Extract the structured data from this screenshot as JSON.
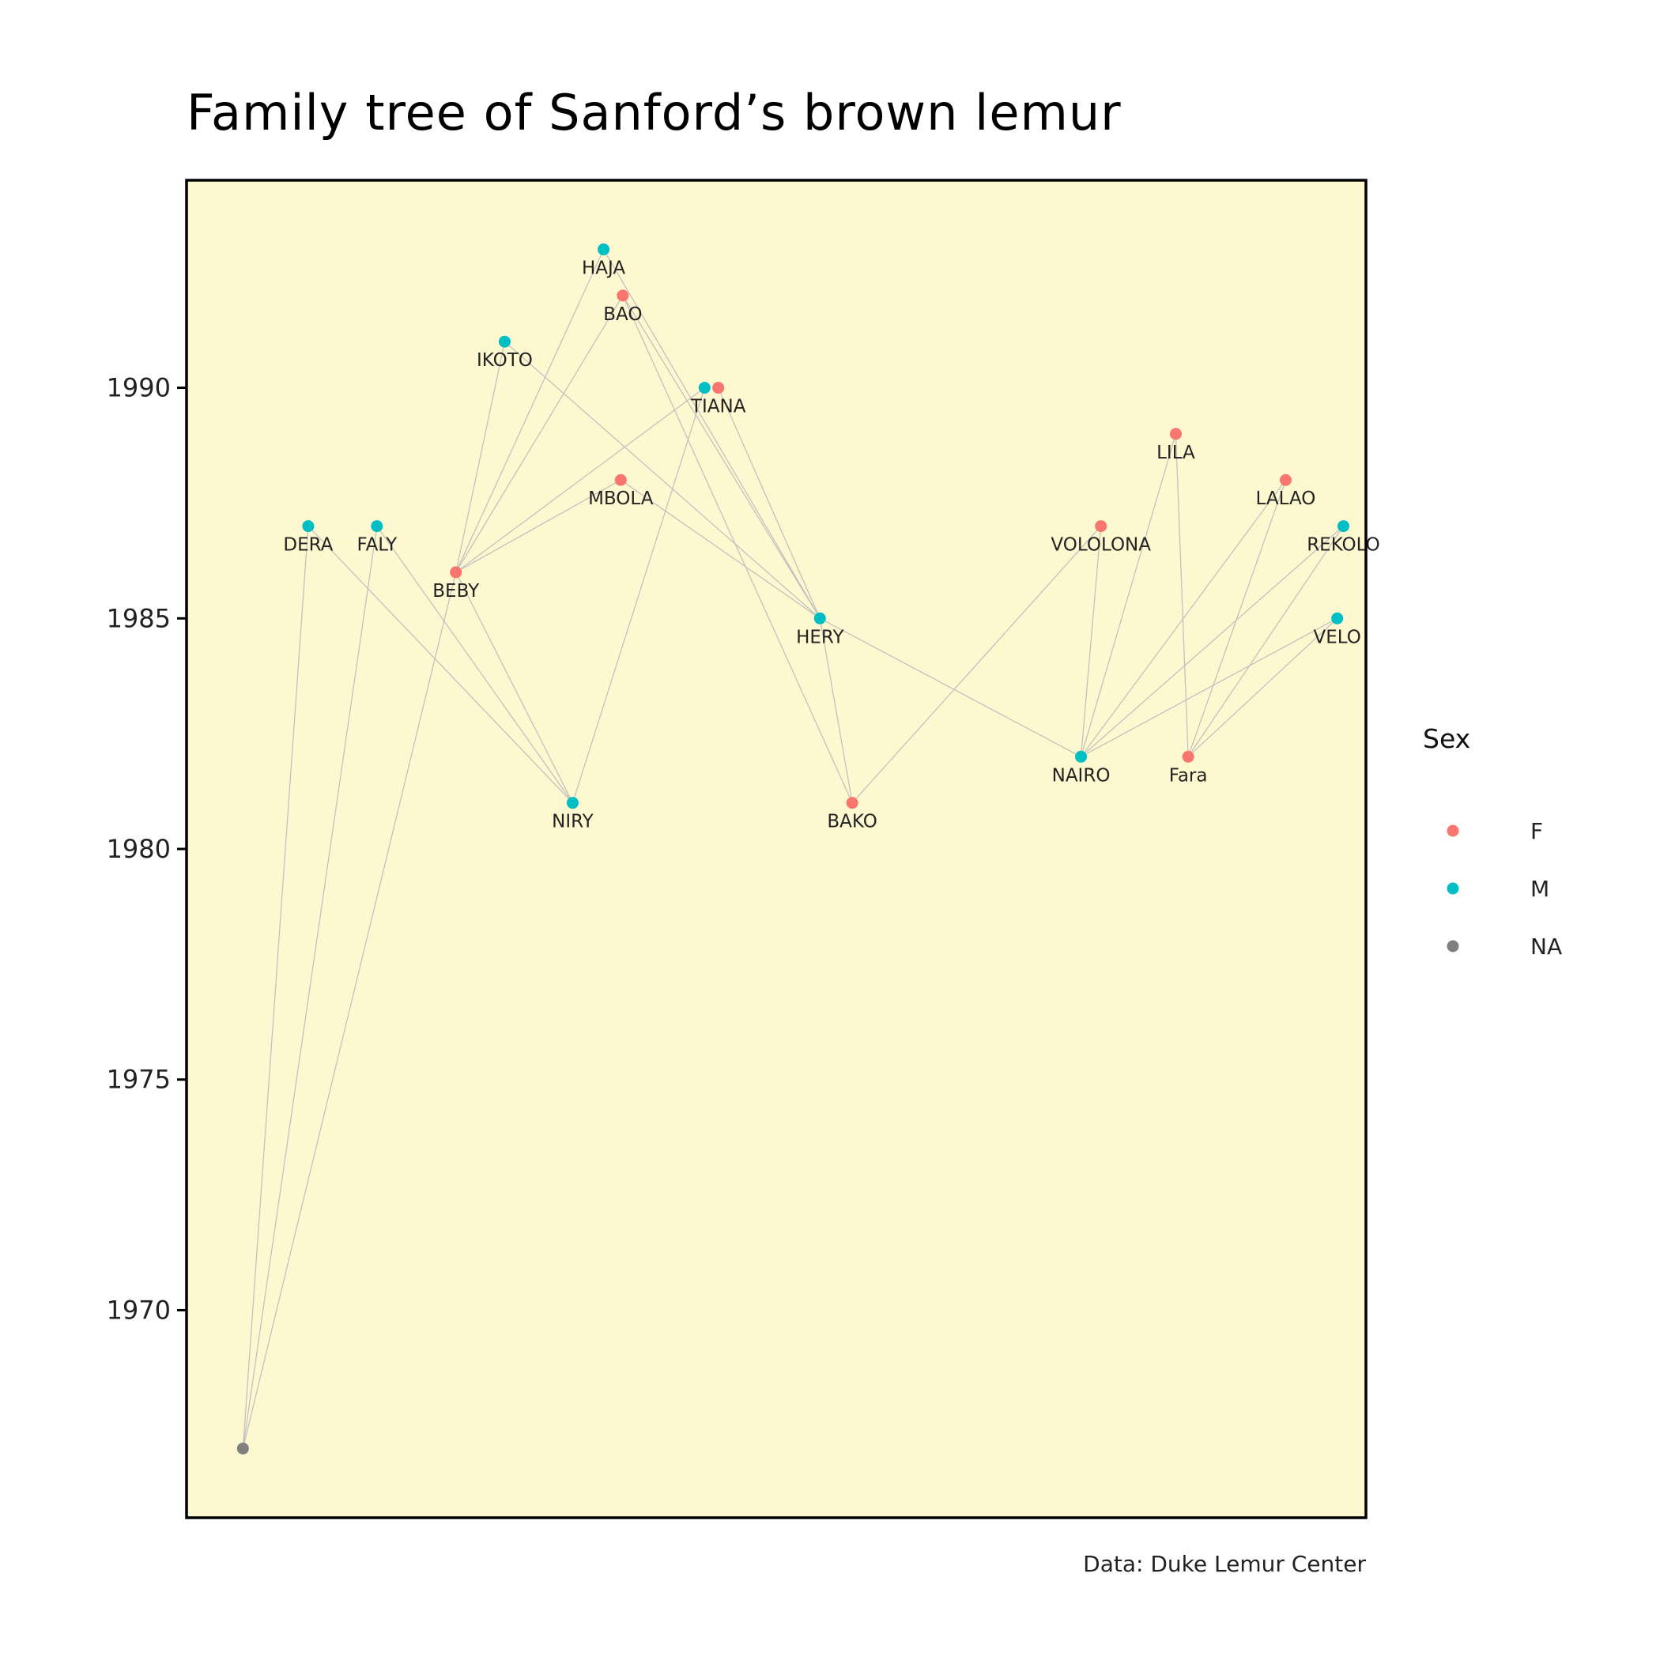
{
  "chart_data": {
    "type": "network",
    "title": "Family tree of Sanford’s brown lemur",
    "caption": "Data: Duke Lemur Center",
    "ylim": [
      1965.5,
      1994.5
    ],
    "yticks": [
      1970,
      1975,
      1980,
      1985,
      1990
    ],
    "grid": false,
    "legend": {
      "title": "Sex",
      "placement": "right",
      "entries": [
        {
          "label": "F",
          "color": "#F8766D"
        },
        {
          "label": "M",
          "color": "#00BFC4"
        },
        {
          "label": "NA",
          "color": "#7F7F7F"
        }
      ]
    },
    "background_color": "#FDF8CF",
    "edge_color": "#BEBEBE",
    "nodes": [
      {
        "id": "root",
        "label": "",
        "year": 1967,
        "sex": "NA",
        "x": 0.05
      },
      {
        "id": "DERA",
        "label": "DERA",
        "year": 1987,
        "sex": "M",
        "x": 1.0
      },
      {
        "id": "FALY",
        "label": "FALY",
        "year": 1987,
        "sex": "M",
        "x": 2.0
      },
      {
        "id": "BEBY",
        "label": "BEBY",
        "year": 1986,
        "sex": "F",
        "x": 3.15
      },
      {
        "id": "IKOTO",
        "label": "IKOTO",
        "year": 1991,
        "sex": "M",
        "x": 3.86
      },
      {
        "id": "NIRY",
        "label": "NIRY",
        "year": 1981,
        "sex": "M",
        "x": 4.85
      },
      {
        "id": "HAJA",
        "label": "HAJA",
        "year": 1993,
        "sex": "M",
        "x": 5.3
      },
      {
        "id": "MBOLA",
        "label": "MBOLA",
        "year": 1988,
        "sex": "F",
        "x": 5.55
      },
      {
        "id": "BAO",
        "label": "BAO",
        "year": 1992,
        "sex": "F",
        "x": 5.58
      },
      {
        "id": "TIANA_M",
        "label": "",
        "year": 1990,
        "sex": "M",
        "x": 6.77
      },
      {
        "id": "TIANA",
        "label": "TIANA",
        "year": 1990,
        "sex": "F",
        "x": 6.97
      },
      {
        "id": "HERY",
        "label": "HERY",
        "year": 1985,
        "sex": "M",
        "x": 8.45
      },
      {
        "id": "BAKO",
        "label": "BAKO",
        "year": 1981,
        "sex": "F",
        "x": 8.92
      },
      {
        "id": "NAIRO",
        "label": "NAIRO",
        "year": 1982,
        "sex": "M",
        "x": 12.25
      },
      {
        "id": "VOLOLONA",
        "label": "VOLOLONA",
        "year": 1987,
        "sex": "F",
        "x": 12.54
      },
      {
        "id": "LILA",
        "label": "LILA",
        "year": 1989,
        "sex": "F",
        "x": 13.63
      },
      {
        "id": "Fara",
        "label": "Fara",
        "year": 1982,
        "sex": "F",
        "x": 13.81
      },
      {
        "id": "LALAO",
        "label": "LALAO",
        "year": 1988,
        "sex": "F",
        "x": 15.23
      },
      {
        "id": "VELO",
        "label": "VELO",
        "year": 1985,
        "sex": "M",
        "x": 15.98
      },
      {
        "id": "REKOLO",
        "label": "REKOLO",
        "year": 1987,
        "sex": "M",
        "x": 16.07
      }
    ],
    "edges": [
      [
        "root",
        "DERA"
      ],
      [
        "root",
        "FALY"
      ],
      [
        "root",
        "BEBY"
      ],
      [
        "DERA",
        "NIRY"
      ],
      [
        "FALY",
        "NIRY"
      ],
      [
        "BEBY",
        "NIRY"
      ],
      [
        "BEBY",
        "IKOTO"
      ],
      [
        "BEBY",
        "HAJA"
      ],
      [
        "BEBY",
        "BAO"
      ],
      [
        "BEBY",
        "MBOLA"
      ],
      [
        "BEBY",
        "TIANA_M"
      ],
      [
        "NIRY",
        "TIANA_M"
      ],
      [
        "IKOTO",
        "HERY"
      ],
      [
        "MBOLA",
        "HERY"
      ],
      [
        "HAJA",
        "HERY"
      ],
      [
        "BAO",
        "HERY"
      ],
      [
        "TIANA",
        "HERY"
      ],
      [
        "BAO",
        "BAKO"
      ],
      [
        "HERY",
        "BAKO"
      ],
      [
        "HERY",
        "NAIRO"
      ],
      [
        "BAKO",
        "VOLOLONA"
      ],
      [
        "NAIRO",
        "VOLOLONA"
      ],
      [
        "NAIRO",
        "LILA"
      ],
      [
        "NAIRO",
        "LALAO"
      ],
      [
        "NAIRO",
        "REKOLO"
      ],
      [
        "NAIRO",
        "VELO"
      ],
      [
        "Fara",
        "LILA"
      ],
      [
        "Fara",
        "LALAO"
      ],
      [
        "Fara",
        "REKOLO"
      ],
      [
        "Fara",
        "VELO"
      ]
    ]
  }
}
